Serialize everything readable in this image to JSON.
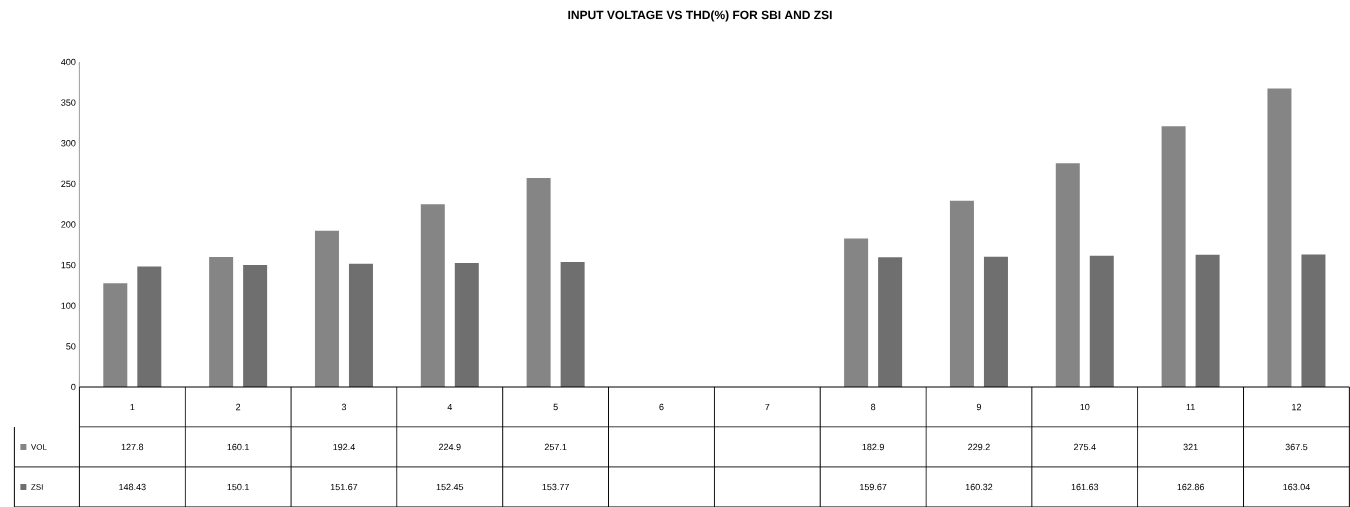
{
  "chart_data": {
    "type": "bar",
    "title": "INPUT VOLTAGE VS THD(%) FOR SBI AND ZSI",
    "categories": [
      "1",
      "2",
      "3",
      "4",
      "5",
      "6",
      "7",
      "8",
      "9",
      "10",
      "11",
      "12"
    ],
    "series": [
      {
        "name": "VOL",
        "color": "#858585",
        "values": [
          127.8,
          160.1,
          192.4,
          224.9,
          257.1,
          null,
          null,
          182.9,
          229.2,
          275.4,
          321,
          367.5
        ]
      },
      {
        "name": "ZSI",
        "color": "#6f6f6f",
        "values": [
          148.43,
          150.1,
          151.67,
          152.45,
          153.77,
          null,
          null,
          159.67,
          160.32,
          161.63,
          162.86,
          163.04
        ]
      }
    ],
    "ylim": [
      0,
      400
    ],
    "yticks": [
      0,
      50,
      100,
      150,
      200,
      250,
      300,
      350,
      400
    ],
    "data_labels": true,
    "legend": "bottom left",
    "grid": false
  }
}
